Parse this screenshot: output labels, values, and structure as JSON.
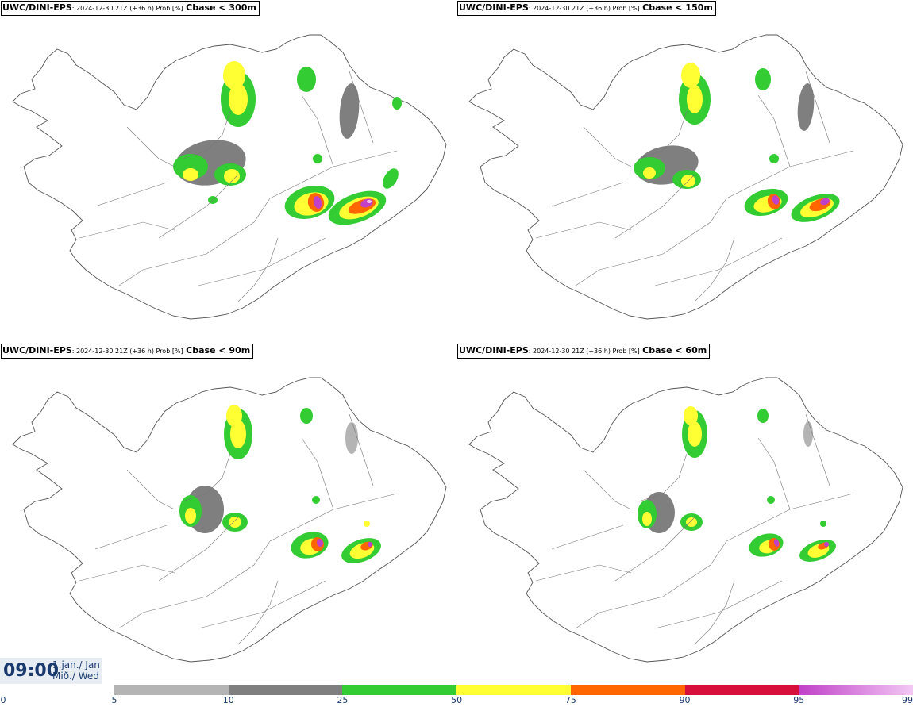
{
  "panels": [
    {
      "source": "UWC/DINI-EPS",
      "meta": ": 2024-12-30 21Z (+36 h) Prob [%]",
      "variable": "Cbase < 300m"
    },
    {
      "source": "UWC/DINI-EPS",
      "meta": ": 2024-12-30 21Z (+36 h) Prob [%]",
      "variable": "Cbase < 150m"
    },
    {
      "source": "UWC/DINI-EPS",
      "meta": ": 2024-12-30 21Z (+36 h) Prob [%]",
      "variable": "Cbase < 90m"
    },
    {
      "source": "UWC/DINI-EPS",
      "meta": ": 2024-12-30 21Z (+36 h) Prob [%]",
      "variable": "Cbase < 60m"
    }
  ],
  "time": {
    "clock": "09:00",
    "date_line1": "1.jan./ Jan",
    "date_line2": "Mið./ Wed"
  },
  "colorbar": {
    "ticks": [
      "0",
      "5",
      "10",
      "25",
      "50",
      "75",
      "90",
      "95",
      "99"
    ],
    "segments": [
      {
        "from": 5,
        "to": 10,
        "color": "#b4b4b4"
      },
      {
        "from": 10,
        "to": 25,
        "color": "#7f7f7f"
      },
      {
        "from": 25,
        "to": 50,
        "color": "#33cc33"
      },
      {
        "from": 50,
        "to": 75,
        "color": "#ffff33"
      },
      {
        "from": 75,
        "to": 90,
        "color": "#ff6600"
      },
      {
        "from": 90,
        "to": 95,
        "color": "#d6103a"
      },
      {
        "from": 95,
        "to": 99,
        "color": "#c040c8"
      }
    ],
    "top_color": "#f2c8f4"
  }
}
